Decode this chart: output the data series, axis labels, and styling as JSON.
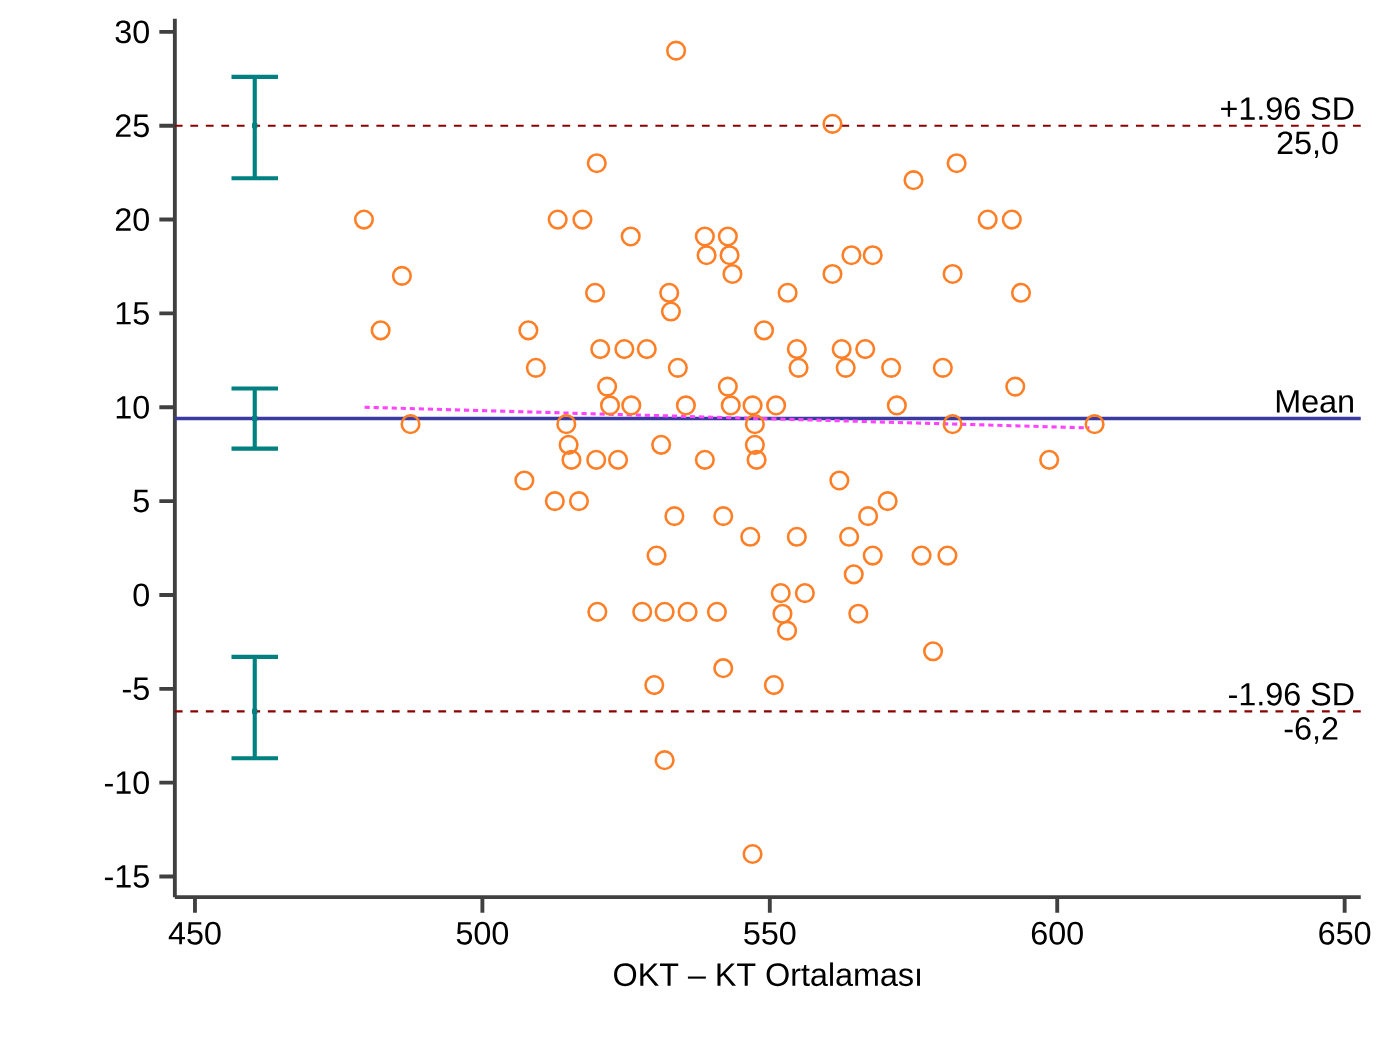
{
  "chart_data": {
    "type": "scatter",
    "xlabel": "OKT – KT Ortalaması",
    "xlim": [
      446.5,
      652.8
    ],
    "ylim": [
      -16.1,
      30.7
    ],
    "xticks": [
      450,
      500,
      550,
      600,
      650
    ],
    "yticks": [
      -15,
      -10,
      -5,
      0,
      5,
      10,
      15,
      20,
      25,
      30
    ],
    "series": [
      {
        "marker": "circle",
        "color": "#ff7f27",
        "x": [
          533.7,
          519.9,
          479.4,
          513.1,
          517.4,
          525.8,
          486.0,
          538.7,
          542.7,
          539.0,
          543.0,
          543.5,
          482.3,
          508.0,
          519.6,
          532.5,
          532.8,
          549.0,
          520.5,
          524.7,
          528.6,
          509.3,
          534.0,
          521.7,
          542.7,
          522.2,
          525.9,
          535.4,
          543.2,
          547.0,
          551.1,
          487.5,
          514.6,
          547.4,
          515.0,
          531.1,
          547.4,
          515.5,
          519.8,
          523.6,
          538.7,
          547.7,
          560.9,
          582.5,
          575.0,
          587.9,
          592.1,
          564.2,
          567.9,
          560.9,
          581.8,
          593.7,
          553.1,
          554.7,
          562.5,
          566.6,
          555.0,
          563.2,
          571.1,
          580.1,
          592.7,
          572.1,
          581.8,
          606.5,
          598.6,
          507.3,
          512.6,
          516.8,
          533.4,
          541.9,
          546.6,
          530.3,
          520.0,
          527.8,
          531.7,
          535.7,
          540.8,
          541.9,
          529.9,
          531.7,
          547.0,
          562.1,
          570.5,
          567.1,
          554.7,
          563.8,
          567.9,
          576.4,
          580.9,
          564.6,
          551.9,
          556.1,
          552.2,
          565.4,
          553.0,
          578.4,
          550.7
        ],
        "values": [
          29.0,
          23.0,
          20.0,
          20.0,
          20.0,
          19.1,
          17.0,
          19.1,
          19.1,
          18.1,
          18.1,
          17.1,
          14.1,
          14.1,
          16.1,
          16.1,
          15.1,
          14.1,
          13.1,
          13.1,
          13.1,
          12.1,
          12.1,
          11.1,
          11.1,
          10.1,
          10.1,
          10.1,
          10.1,
          10.1,
          10.1,
          9.1,
          9.1,
          9.1,
          8.0,
          8.0,
          8.0,
          7.2,
          7.2,
          7.2,
          7.2,
          7.2,
          25.1,
          23.0,
          22.1,
          20.0,
          20.0,
          18.1,
          18.1,
          17.1,
          17.1,
          16.1,
          16.1,
          13.1,
          13.1,
          13.1,
          12.1,
          12.1,
          12.1,
          12.1,
          11.1,
          10.1,
          9.1,
          9.1,
          7.2,
          6.1,
          5.0,
          5.0,
          4.2,
          4.2,
          3.1,
          2.1,
          -0.9,
          -0.9,
          -0.9,
          -0.9,
          -0.9,
          -3.9,
          -4.8,
          -8.8,
          -13.8,
          6.1,
          5.0,
          4.2,
          3.1,
          3.1,
          2.1,
          2.1,
          2.1,
          1.1,
          0.1,
          0.1,
          -1.0,
          -1.0,
          -1.9,
          -3.0,
          -4.8
        ]
      },
      {
        "type": "line",
        "marker": "none",
        "line_style": "dashed",
        "color": "#ff44ff",
        "x": [
          479.5,
          605.6
        ],
        "values": [
          10.0,
          8.9
        ]
      },
      {
        "type": "scatter",
        "color": "#008080",
        "x": [
          460.4,
          460.4,
          460.4
        ],
        "values": [
          25.0,
          9.4,
          -6.2
        ],
        "errors": [
          [
            22.2,
            27.6
          ],
          [
            7.8,
            11.0
          ],
          [
            -8.7,
            -3.3
          ]
        ]
      }
    ],
    "ref_lines": [
      {
        "axis": "y",
        "value": 25.0,
        "label": "+1.96 SD",
        "color": "#8b0000",
        "line_style": "dashed"
      },
      {
        "axis": "y",
        "value": 9.4,
        "label": "Mean",
        "color": "#3a3aa0",
        "line_style": "solid"
      },
      {
        "axis": "y",
        "value": -6.2,
        "label": "-1.96 SD",
        "color": "#8b0000",
        "line_style": "dashed"
      }
    ],
    "annotations": [
      {
        "text": "25,0",
        "x": 650,
        "y": 25.0
      },
      {
        "text": "-6,2",
        "x": 650,
        "y": -6.2
      }
    ]
  }
}
